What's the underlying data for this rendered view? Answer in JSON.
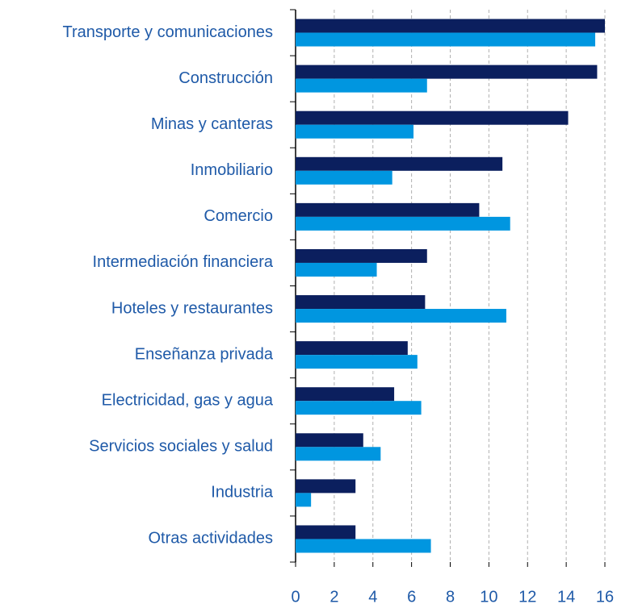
{
  "chart_data": {
    "type": "hbar",
    "categories": [
      "Transporte y comunicaciones",
      "Construcción",
      "Minas y canteras",
      "Inmobiliario",
      "Comercio",
      "Intermediación financiera",
      "Hoteles y restaurantes",
      "Enseñanza privada",
      "Electricidad, gas y agua",
      "Servicios sociales y salud",
      "Industria",
      "Otras actividades"
    ],
    "series": [
      {
        "color": "#0b1f5e",
        "values": [
          16.0,
          15.6,
          14.1,
          10.7,
          9.5,
          6.8,
          6.7,
          5.8,
          5.1,
          3.5,
          3.1,
          3.1
        ]
      },
      {
        "color": "#0096e0",
        "values": [
          15.5,
          6.8,
          6.1,
          5.0,
          11.1,
          4.2,
          10.9,
          6.3,
          6.5,
          4.4,
          0.8,
          7.0
        ]
      }
    ],
    "xlim": [
      0,
      16
    ],
    "xticks": [
      0,
      2,
      4,
      6,
      8,
      10,
      12,
      14,
      16
    ],
    "grid": true
  }
}
